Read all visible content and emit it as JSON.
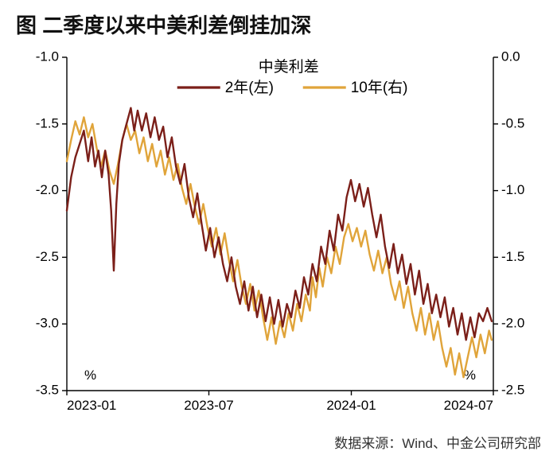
{
  "title": {
    "text": "图 二季度以来中美利差倒挂加深",
    "fontsize": 26
  },
  "footer": {
    "text": "数据来源：Wind、中金公司研究部",
    "fontsize": 17
  },
  "chart": {
    "type": "line-dual-axis",
    "background_color": "#ffffff",
    "axis_color": "#000000",
    "axis_line_width": 1.4,
    "tick_fontsize": 17,
    "unit_label": "%",
    "unit_fontsize": 17,
    "x": {
      "domain": [
        0,
        1
      ],
      "ticks": [
        {
          "t": 0.0,
          "label": "2023-01"
        },
        {
          "t": 0.333,
          "label": "2023-07"
        },
        {
          "t": 0.667,
          "label": "2024-01"
        },
        {
          "t": 1.0,
          "label": "2024-07"
        }
      ]
    },
    "y_left": {
      "lim": [
        -3.5,
        -1.0
      ],
      "tick_step": 0.5,
      "ticks": [
        -1.0,
        -1.5,
        -2.0,
        -2.5,
        -3.0,
        -3.5
      ]
    },
    "y_right": {
      "lim": [
        -2.5,
        0.0
      ],
      "tick_step": 0.5,
      "ticks": [
        0.0,
        -0.5,
        -1.0,
        -1.5,
        -2.0,
        -2.5
      ]
    },
    "legend": {
      "title": "中美利差",
      "title_fontsize": 19,
      "item_fontsize": 19,
      "line_length": 54,
      "line_width": 3.2,
      "items": [
        {
          "key": "s2y",
          "label": "2年(左)",
          "color": "#7b1f19"
        },
        {
          "key": "s10y",
          "label": "10年(右)",
          "color": "#e0a43a"
        }
      ]
    },
    "series": {
      "s2y": {
        "axis": "left",
        "color": "#7b1f19",
        "line_width": 2.4,
        "points": [
          [
            0.0,
            -2.15
          ],
          [
            0.01,
            -1.9
          ],
          [
            0.02,
            -1.75
          ],
          [
            0.03,
            -1.65
          ],
          [
            0.04,
            -1.55
          ],
          [
            0.05,
            -1.78
          ],
          [
            0.058,
            -1.6
          ],
          [
            0.066,
            -1.82
          ],
          [
            0.074,
            -1.7
          ],
          [
            0.082,
            -1.9
          ],
          [
            0.09,
            -1.7
          ],
          [
            0.098,
            -1.88
          ],
          [
            0.104,
            -2.15
          ],
          [
            0.11,
            -2.6
          ],
          [
            0.116,
            -2.1
          ],
          [
            0.122,
            -1.8
          ],
          [
            0.13,
            -1.62
          ],
          [
            0.14,
            -1.5
          ],
          [
            0.15,
            -1.38
          ],
          [
            0.158,
            -1.55
          ],
          [
            0.166,
            -1.4
          ],
          [
            0.176,
            -1.55
          ],
          [
            0.186,
            -1.42
          ],
          [
            0.196,
            -1.6
          ],
          [
            0.206,
            -1.45
          ],
          [
            0.216,
            -1.62
          ],
          [
            0.226,
            -1.52
          ],
          [
            0.236,
            -1.75
          ],
          [
            0.246,
            -1.6
          ],
          [
            0.256,
            -1.82
          ],
          [
            0.266,
            -1.95
          ],
          [
            0.276,
            -1.8
          ],
          [
            0.286,
            -2.05
          ],
          [
            0.296,
            -2.2
          ],
          [
            0.306,
            -2.02
          ],
          [
            0.316,
            -2.25
          ],
          [
            0.326,
            -2.45
          ],
          [
            0.336,
            -2.28
          ],
          [
            0.346,
            -2.5
          ],
          [
            0.356,
            -2.35
          ],
          [
            0.366,
            -2.55
          ],
          [
            0.376,
            -2.68
          ],
          [
            0.386,
            -2.5
          ],
          [
            0.396,
            -2.72
          ],
          [
            0.406,
            -2.85
          ],
          [
            0.416,
            -2.68
          ],
          [
            0.426,
            -2.9
          ],
          [
            0.436,
            -2.72
          ],
          [
            0.446,
            -2.95
          ],
          [
            0.456,
            -2.78
          ],
          [
            0.466,
            -2.98
          ],
          [
            0.476,
            -2.8
          ],
          [
            0.486,
            -3.0
          ],
          [
            0.496,
            -2.82
          ],
          [
            0.506,
            -3.02
          ],
          [
            0.516,
            -2.85
          ],
          [
            0.526,
            -2.95
          ],
          [
            0.536,
            -2.75
          ],
          [
            0.546,
            -2.88
          ],
          [
            0.556,
            -2.65
          ],
          [
            0.566,
            -2.78
          ],
          [
            0.576,
            -2.55
          ],
          [
            0.586,
            -2.68
          ],
          [
            0.596,
            -2.42
          ],
          [
            0.606,
            -2.55
          ],
          [
            0.616,
            -2.3
          ],
          [
            0.626,
            -2.45
          ],
          [
            0.636,
            -2.18
          ],
          [
            0.646,
            -2.3
          ],
          [
            0.656,
            -2.05
          ],
          [
            0.666,
            -1.92
          ],
          [
            0.676,
            -2.08
          ],
          [
            0.686,
            -1.95
          ],
          [
            0.696,
            -2.12
          ],
          [
            0.706,
            -1.98
          ],
          [
            0.716,
            -2.18
          ],
          [
            0.726,
            -2.35
          ],
          [
            0.736,
            -2.18
          ],
          [
            0.746,
            -2.42
          ],
          [
            0.756,
            -2.58
          ],
          [
            0.766,
            -2.4
          ],
          [
            0.776,
            -2.62
          ],
          [
            0.786,
            -2.48
          ],
          [
            0.796,
            -2.7
          ],
          [
            0.806,
            -2.55
          ],
          [
            0.816,
            -2.78
          ],
          [
            0.826,
            -2.6
          ],
          [
            0.836,
            -2.85
          ],
          [
            0.846,
            -2.7
          ],
          [
            0.856,
            -2.92
          ],
          [
            0.866,
            -2.78
          ],
          [
            0.876,
            -2.95
          ],
          [
            0.886,
            -2.8
          ],
          [
            0.896,
            -3.02
          ],
          [
            0.906,
            -2.88
          ],
          [
            0.916,
            -3.08
          ],
          [
            0.926,
            -2.92
          ],
          [
            0.936,
            -3.12
          ],
          [
            0.946,
            -2.95
          ],
          [
            0.956,
            -3.1
          ],
          [
            0.966,
            -2.92
          ],
          [
            0.976,
            -2.98
          ],
          [
            0.986,
            -2.88
          ],
          [
            0.996,
            -2.98
          ]
        ]
      },
      "s10y": {
        "axis": "right",
        "color": "#e0a43a",
        "line_width": 2.4,
        "points": [
          [
            0.0,
            -0.78
          ],
          [
            0.01,
            -0.62
          ],
          [
            0.02,
            -0.48
          ],
          [
            0.03,
            -0.58
          ],
          [
            0.04,
            -0.45
          ],
          [
            0.05,
            -0.6
          ],
          [
            0.06,
            -0.5
          ],
          [
            0.07,
            -0.68
          ],
          [
            0.08,
            -0.82
          ],
          [
            0.09,
            -0.7
          ],
          [
            0.1,
            -0.85
          ],
          [
            0.11,
            -0.95
          ],
          [
            0.12,
            -0.8
          ],
          [
            0.13,
            -0.62
          ],
          [
            0.14,
            -0.5
          ],
          [
            0.15,
            -0.62
          ],
          [
            0.16,
            -0.55
          ],
          [
            0.17,
            -0.72
          ],
          [
            0.18,
            -0.6
          ],
          [
            0.19,
            -0.78
          ],
          [
            0.2,
            -0.65
          ],
          [
            0.21,
            -0.82
          ],
          [
            0.22,
            -0.7
          ],
          [
            0.23,
            -0.88
          ],
          [
            0.24,
            -0.75
          ],
          [
            0.25,
            -0.92
          ],
          [
            0.26,
            -0.8
          ],
          [
            0.27,
            -0.98
          ],
          [
            0.28,
            -1.1
          ],
          [
            0.29,
            -0.95
          ],
          [
            0.3,
            -1.12
          ],
          [
            0.31,
            -1.25
          ],
          [
            0.32,
            -1.1
          ],
          [
            0.33,
            -1.28
          ],
          [
            0.34,
            -1.42
          ],
          [
            0.35,
            -1.28
          ],
          [
            0.36,
            -1.48
          ],
          [
            0.37,
            -1.32
          ],
          [
            0.38,
            -1.52
          ],
          [
            0.39,
            -1.68
          ],
          [
            0.4,
            -1.52
          ],
          [
            0.41,
            -1.72
          ],
          [
            0.42,
            -1.85
          ],
          [
            0.43,
            -1.7
          ],
          [
            0.44,
            -1.9
          ],
          [
            0.45,
            -1.75
          ],
          [
            0.46,
            -1.95
          ],
          [
            0.47,
            -2.12
          ],
          [
            0.48,
            -1.95
          ],
          [
            0.49,
            -2.15
          ],
          [
            0.5,
            -1.98
          ],
          [
            0.51,
            -2.1
          ],
          [
            0.52,
            -1.92
          ],
          [
            0.53,
            -2.05
          ],
          [
            0.54,
            -1.85
          ],
          [
            0.55,
            -1.98
          ],
          [
            0.56,
            -1.78
          ],
          [
            0.57,
            -1.9
          ],
          [
            0.576,
            -1.65
          ],
          [
            0.584,
            -1.8
          ],
          [
            0.592,
            -1.58
          ],
          [
            0.6,
            -1.72
          ],
          [
            0.61,
            -1.5
          ],
          [
            0.62,
            -1.62
          ],
          [
            0.63,
            -1.42
          ],
          [
            0.64,
            -1.55
          ],
          [
            0.65,
            -1.35
          ],
          [
            0.66,
            -1.25
          ],
          [
            0.67,
            -1.38
          ],
          [
            0.68,
            -1.28
          ],
          [
            0.69,
            -1.42
          ],
          [
            0.7,
            -1.3
          ],
          [
            0.71,
            -1.48
          ],
          [
            0.72,
            -1.6
          ],
          [
            0.73,
            -1.45
          ],
          [
            0.74,
            -1.62
          ],
          [
            0.75,
            -1.5
          ],
          [
            0.76,
            -1.7
          ],
          [
            0.77,
            -1.82
          ],
          [
            0.78,
            -1.68
          ],
          [
            0.79,
            -1.88
          ],
          [
            0.8,
            -1.72
          ],
          [
            0.81,
            -1.92
          ],
          [
            0.82,
            -2.05
          ],
          [
            0.83,
            -1.88
          ],
          [
            0.84,
            -2.08
          ],
          [
            0.85,
            -1.92
          ],
          [
            0.86,
            -2.12
          ],
          [
            0.87,
            -1.98
          ],
          [
            0.88,
            -2.18
          ],
          [
            0.89,
            -2.32
          ],
          [
            0.9,
            -2.18
          ],
          [
            0.91,
            -2.38
          ],
          [
            0.92,
            -2.22
          ],
          [
            0.93,
            -2.4
          ],
          [
            0.94,
            -2.25
          ],
          [
            0.95,
            -2.1
          ],
          [
            0.96,
            -2.25
          ],
          [
            0.97,
            -2.08
          ],
          [
            0.98,
            -2.22
          ],
          [
            0.99,
            -2.05
          ],
          [
            0.996,
            -2.12
          ]
        ]
      }
    }
  }
}
